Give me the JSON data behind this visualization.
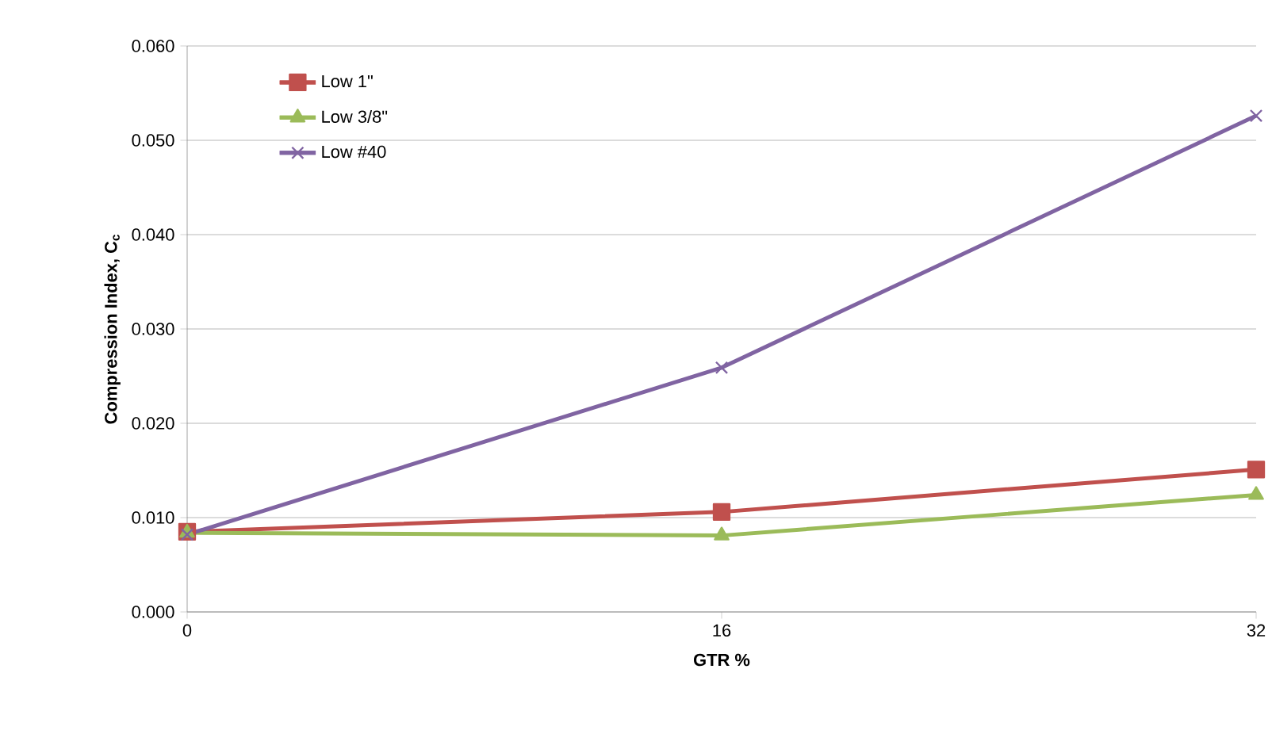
{
  "chart_data": {
    "type": "line",
    "xlabel": "GTR %",
    "ylabel": "Compression Index, C$_{c}$",
    "x": [
      0,
      16,
      32
    ],
    "series": [
      {
        "name": "Low 1\"",
        "color": "#c0504d",
        "marker": "square",
        "values": [
          0.0085,
          0.0106,
          0.0151
        ]
      },
      {
        "name": "Low 3/8\"",
        "color": "#9bbb59",
        "marker": "triangle",
        "values": [
          0.0084,
          0.0081,
          0.0124
        ]
      },
      {
        "name": "Low #40",
        "color": "#8064a2",
        "marker": "cross",
        "values": [
          0.0082,
          0.0259,
          0.0526
        ]
      }
    ],
    "xlim": [
      0,
      32
    ],
    "xticks": [
      0,
      16,
      32
    ],
    "ylim": [
      0,
      0.06
    ],
    "yticks": [
      {
        "value": 0,
        "label": "0.000"
      },
      {
        "value": 0.01,
        "label": "0.010"
      },
      {
        "value": 0.02,
        "label": "0.020"
      },
      {
        "value": 0.03,
        "label": "0.030"
      },
      {
        "value": 0.04,
        "label": "0.040"
      },
      {
        "value": 0.05,
        "label": "0.050"
      },
      {
        "value": 0.06,
        "label": "0.060"
      }
    ],
    "grid": "y",
    "legend": "top left",
    "line_style": "solid"
  }
}
